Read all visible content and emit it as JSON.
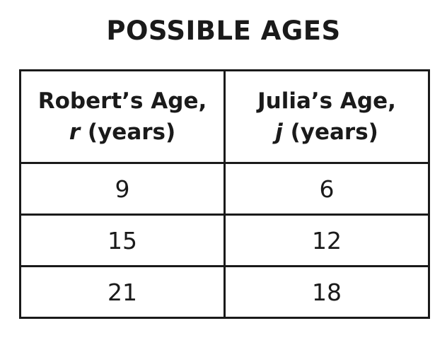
{
  "title": "POSSIBLE AGES",
  "table": {
    "headers": [
      {
        "line1": "Robert’s Age,",
        "variable": "r",
        "unit": "(years)"
      },
      {
        "line1": "Julia’s Age,",
        "variable": "j",
        "unit": "(years)"
      }
    ],
    "rows": [
      [
        "9",
        "6"
      ],
      [
        "15",
        "12"
      ],
      [
        "21",
        "18"
      ]
    ]
  }
}
